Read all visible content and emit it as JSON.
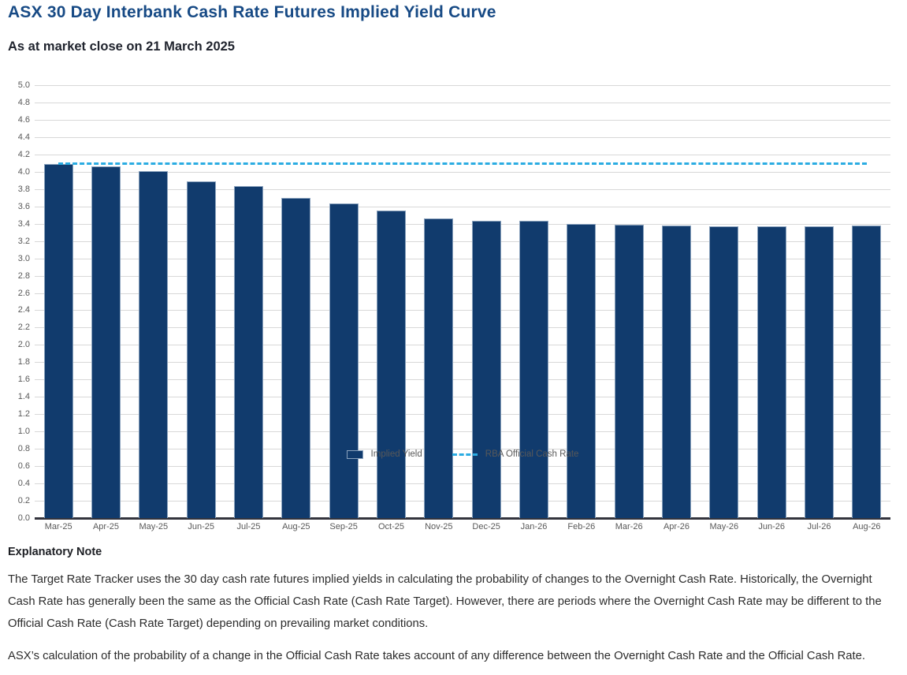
{
  "header": {
    "title": "ASX 30 Day Interbank Cash Rate Futures Implied Yield Curve",
    "subtitle": "As at market close on 21 March 2025"
  },
  "chart_data": {
    "type": "bar",
    "categories": [
      "Mar-25",
      "Apr-25",
      "May-25",
      "Jun-25",
      "Jul-25",
      "Aug-25",
      "Sep-25",
      "Oct-25",
      "Nov-25",
      "Dec-25",
      "Jan-26",
      "Feb-26",
      "Mar-26",
      "Apr-26",
      "May-26",
      "Jun-26",
      "Jul-26",
      "Aug-26"
    ],
    "series": [
      {
        "name": "Implied Yield",
        "type": "bar",
        "color": "#113b6d",
        "values": [
          4.09,
          4.06,
          4.01,
          3.89,
          3.83,
          3.7,
          3.63,
          3.55,
          3.46,
          3.43,
          3.43,
          3.4,
          3.39,
          3.38,
          3.37,
          3.37,
          3.37,
          3.38
        ]
      },
      {
        "name": "RBA Official Cash Rate",
        "type": "dashed-line",
        "color": "#2bace2",
        "value": 4.1
      }
    ],
    "title": "ASX 30 Day Interbank Cash Rate Futures Implied Yield Curve",
    "xlabel": "",
    "ylabel": "",
    "ylim": [
      0.0,
      5.0
    ],
    "ytick_step": 0.2,
    "yticks": [
      "5.0",
      "4.8",
      "4.6",
      "4.4",
      "4.2",
      "4.0",
      "3.8",
      "3.6",
      "3.4",
      "3.2",
      "3.0",
      "2.8",
      "2.6",
      "2.4",
      "2.2",
      "2.0",
      "1.8",
      "1.6",
      "1.4",
      "1.2",
      "1.0",
      "0.8",
      "0.6",
      "0.4",
      "0.2",
      "0.0"
    ],
    "grid": true,
    "legend_position": "bottom"
  },
  "notes": {
    "heading": "Explanatory Note",
    "paragraphs": [
      "The Target Rate Tracker uses the 30 day cash rate futures implied yields in calculating the probability of changes to the Overnight Cash Rate. Historically, the Overnight Cash Rate has generally been the same as the Official Cash Rate (Cash Rate Target). However, there are periods where the Overnight Cash Rate may be different to the Official Cash Rate (Cash Rate Target) depending on prevailing market conditions.",
      "ASX’s calculation of the probability of a change in the Official Cash Rate takes account of any difference between the Overnight Cash Rate and the Official Cash Rate."
    ]
  },
  "colors": {
    "title": "#174a85",
    "bar_fill": "#113b6d",
    "bar_border": "#8aa2bd",
    "rba_line": "#2bace2",
    "gridline": "#d8d8d8",
    "axis_label": "#595959",
    "axis_line": "#33343d"
  }
}
